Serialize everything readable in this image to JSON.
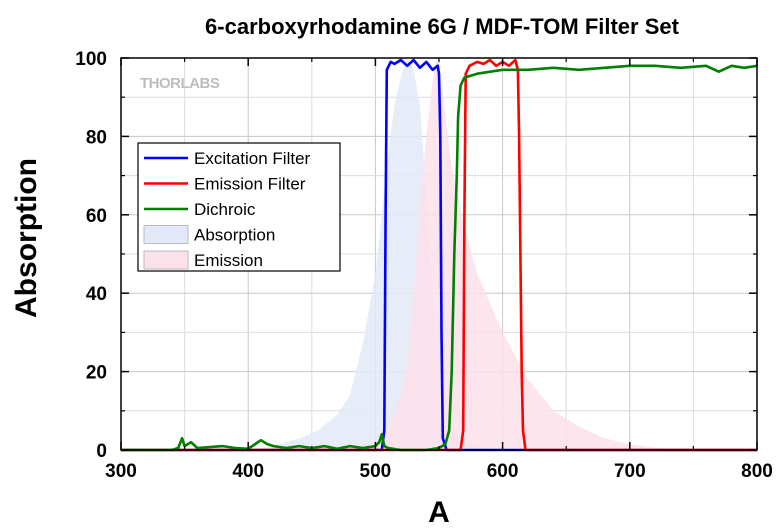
{
  "chart_data": {
    "type": "line",
    "title": "6-carboxyrhodamine 6G / MDF-TOM Filter Set",
    "xlabel": "A",
    "ylabel": "Absorption",
    "xlim": [
      300,
      800
    ],
    "ylim": [
      0,
      100
    ],
    "x_ticks": [
      "300",
      "400",
      "500",
      "600",
      "700",
      "800"
    ],
    "y_ticks": [
      "0",
      "20",
      "40",
      "60",
      "80",
      "100"
    ],
    "grid": true,
    "legend_position": "upper-left",
    "watermark": "THORLABS",
    "series": [
      {
        "name": "Excitation Filter",
        "kind": "line",
        "color": "#0000ff",
        "points": [
          [
            300,
            0
          ],
          [
            505,
            0
          ],
          [
            507,
            5
          ],
          [
            508,
            60
          ],
          [
            509,
            97
          ],
          [
            512,
            99
          ],
          [
            515,
            98.5
          ],
          [
            520,
            99.5
          ],
          [
            525,
            98
          ],
          [
            530,
            99.5
          ],
          [
            535,
            97.5
          ],
          [
            540,
            99
          ],
          [
            545,
            97
          ],
          [
            549,
            98
          ],
          [
            550,
            96
          ],
          [
            551,
            80
          ],
          [
            552,
            30
          ],
          [
            553,
            3
          ],
          [
            556,
            0
          ],
          [
            800,
            0
          ]
        ]
      },
      {
        "name": "Emission Filter",
        "kind": "line",
        "color": "#ff0000",
        "points": [
          [
            300,
            0
          ],
          [
            567,
            0
          ],
          [
            569,
            5
          ],
          [
            570,
            60
          ],
          [
            571,
            96
          ],
          [
            574,
            98
          ],
          [
            580,
            99
          ],
          [
            585,
            98.5
          ],
          [
            590,
            99.5
          ],
          [
            595,
            98
          ],
          [
            600,
            99
          ],
          [
            605,
            98
          ],
          [
            610,
            99.5
          ],
          [
            612,
            97
          ],
          [
            613,
            80
          ],
          [
            614,
            50
          ],
          [
            615,
            20
          ],
          [
            616,
            5
          ],
          [
            618,
            0
          ],
          [
            800,
            0
          ]
        ]
      },
      {
        "name": "Dichroic",
        "kind": "line",
        "color": "#008000",
        "points": [
          [
            300,
            0
          ],
          [
            340,
            0
          ],
          [
            345,
            0.5
          ],
          [
            348,
            3
          ],
          [
            350,
            1
          ],
          [
            355,
            2
          ],
          [
            360,
            0.5
          ],
          [
            380,
            1
          ],
          [
            390,
            0.5
          ],
          [
            400,
            0.3
          ],
          [
            410,
            2.5
          ],
          [
            415,
            1.5
          ],
          [
            420,
            1
          ],
          [
            430,
            0.5
          ],
          [
            440,
            1
          ],
          [
            450,
            0.5
          ],
          [
            460,
            1
          ],
          [
            470,
            0.3
          ],
          [
            480,
            1
          ],
          [
            490,
            0.5
          ],
          [
            500,
            1
          ],
          [
            503,
            2
          ],
          [
            505,
            4
          ],
          [
            507,
            1
          ],
          [
            510,
            0.5
          ],
          [
            520,
            0
          ],
          [
            540,
            0
          ],
          [
            550,
            0.5
          ],
          [
            555,
            1.5
          ],
          [
            558,
            5
          ],
          [
            560,
            20
          ],
          [
            562,
            50
          ],
          [
            564,
            70
          ],
          [
            565,
            85
          ],
          [
            567,
            93
          ],
          [
            570,
            95
          ],
          [
            580,
            96
          ],
          [
            600,
            97
          ],
          [
            620,
            97
          ],
          [
            640,
            97.5
          ],
          [
            660,
            97
          ],
          [
            680,
            97.5
          ],
          [
            700,
            98
          ],
          [
            720,
            98
          ],
          [
            740,
            97.5
          ],
          [
            760,
            98
          ],
          [
            770,
            96.5
          ],
          [
            780,
            98
          ],
          [
            790,
            97.5
          ],
          [
            800,
            98
          ]
        ]
      },
      {
        "name": "Absorption",
        "kind": "area",
        "color": "#e3e9f8",
        "points": [
          [
            400,
            0
          ],
          [
            420,
            1
          ],
          [
            440,
            3
          ],
          [
            455,
            5
          ],
          [
            470,
            9
          ],
          [
            480,
            14
          ],
          [
            490,
            27
          ],
          [
            500,
            45
          ],
          [
            505,
            60
          ],
          [
            510,
            75
          ],
          [
            515,
            88
          ],
          [
            520,
            95
          ],
          [
            525,
            100
          ],
          [
            530,
            97
          ],
          [
            535,
            88
          ],
          [
            540,
            65
          ],
          [
            545,
            40
          ],
          [
            550,
            20
          ],
          [
            555,
            10
          ],
          [
            560,
            5
          ],
          [
            570,
            2
          ],
          [
            580,
            1
          ],
          [
            600,
            0
          ]
        ]
      },
      {
        "name": "Emission",
        "kind": "area",
        "color": "#fbe1ea",
        "points": [
          [
            480,
            0
          ],
          [
            500,
            2
          ],
          [
            510,
            5
          ],
          [
            520,
            14
          ],
          [
            525,
            22
          ],
          [
            530,
            40
          ],
          [
            535,
            62
          ],
          [
            540,
            80
          ],
          [
            545,
            94
          ],
          [
            548,
            100
          ],
          [
            550,
            98
          ],
          [
            555,
            85
          ],
          [
            560,
            72
          ],
          [
            570,
            57
          ],
          [
            580,
            45
          ],
          [
            600,
            30
          ],
          [
            620,
            18
          ],
          [
            640,
            10
          ],
          [
            660,
            6
          ],
          [
            680,
            3
          ],
          [
            700,
            1.5
          ],
          [
            720,
            0.5
          ],
          [
            750,
            0
          ]
        ]
      }
    ]
  }
}
